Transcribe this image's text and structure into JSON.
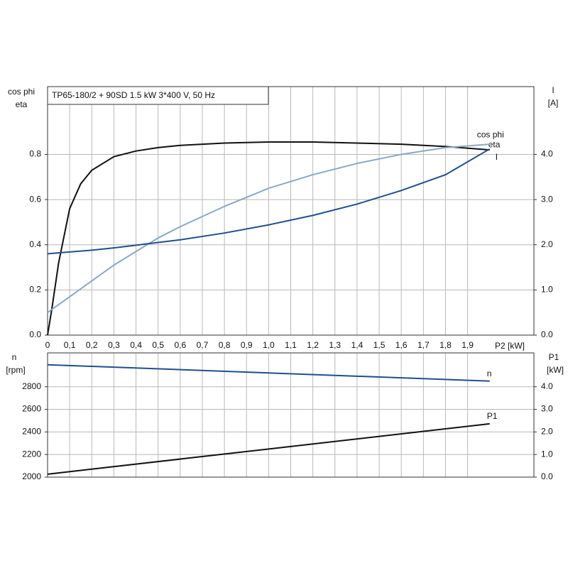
{
  "chart_data": [
    {
      "type": "line",
      "title": "TP65-180/2 + 90SD  1.5 kW  3*400 V, 50 Hz",
      "ylabel": [
        "cos phi",
        "eta"
      ],
      "y2label": [
        "I",
        "[A]"
      ],
      "xlabel": "P2 [kW]",
      "x": [
        0,
        0.02,
        0.05,
        0.1,
        0.15,
        0.2,
        0.3,
        0.4,
        0.5,
        0.6,
        0.8,
        1.0,
        1.2,
        1.4,
        1.6,
        1.8,
        2.0
      ],
      "xlim": [
        0,
        2.2
      ],
      "xticks": [
        0,
        {
          "value": 0.1,
          "label": "0,1"
        },
        {
          "value": 0.2,
          "label": "0,2"
        },
        {
          "value": 0.3,
          "label": "0,3"
        },
        {
          "value": 0.4,
          "label": "0,4"
        },
        {
          "value": 0.5,
          "label": "0,5"
        },
        {
          "value": 0.6,
          "label": "0,6"
        },
        {
          "value": 0.7,
          "label": "0,7"
        },
        {
          "value": 0.8,
          "label": "0,8"
        },
        {
          "value": 0.9,
          "label": "0,9"
        },
        {
          "value": 1.0,
          "label": "1,0"
        },
        {
          "value": 1.1,
          "label": "1,1"
        },
        {
          "value": 1.2,
          "label": "1,2"
        },
        {
          "value": 1.3,
          "label": "1,3"
        },
        {
          "value": 1.4,
          "label": "1,4"
        },
        {
          "value": 1.5,
          "label": "1,5"
        },
        {
          "value": 1.6,
          "label": "1,6"
        },
        {
          "value": 1.7,
          "label": "1,7"
        },
        {
          "value": 1.8,
          "label": "1,8"
        },
        {
          "value": 1.9,
          "label": "1,9"
        }
      ],
      "ylim": [
        0,
        1.1
      ],
      "yticks": [
        {
          "value": 0,
          "label": "0.0"
        },
        0.2,
        0.4,
        0.6,
        0.8
      ],
      "y2lim": [
        0,
        5.5
      ],
      "y2ticks": [
        {
          "value": 0,
          "label": "0.0"
        },
        {
          "value": 1,
          "label": "1.0"
        },
        {
          "value": 2,
          "label": "2.0"
        },
        {
          "value": 3,
          "label": "3.0"
        },
        {
          "value": 4,
          "label": "4.0"
        }
      ],
      "grid": true,
      "series": [
        {
          "name": "eta",
          "color": "#111111",
          "values": [
            0,
            0.12,
            0.32,
            0.56,
            0.67,
            0.73,
            0.79,
            0.815,
            0.83,
            0.84,
            0.85,
            0.855,
            0.855,
            0.85,
            0.845,
            0.835,
            0.82
          ]
        },
        {
          "name": "cos phi",
          "color": "#86a9c9",
          "values": [
            0.1,
            0.114,
            0.135,
            0.17,
            0.205,
            0.24,
            0.31,
            0.37,
            0.43,
            0.48,
            0.57,
            0.65,
            0.71,
            0.76,
            0.8,
            0.83,
            0.845
          ]
        },
        {
          "name": "I",
          "color": "#1f4f8f",
          "axis": "y2",
          "values": [
            1.8,
            1.81,
            1.82,
            1.84,
            1.86,
            1.88,
            1.93,
            1.99,
            2.05,
            2.11,
            2.26,
            2.44,
            2.65,
            2.9,
            3.2,
            3.55,
            4.12
          ]
        }
      ]
    },
    {
      "type": "line",
      "ylabel": [
        "n",
        "[rpm]"
      ],
      "y2label": [
        "P1",
        "[kW]"
      ],
      "x": [
        0,
        2.0
      ],
      "xlim": [
        0,
        2.2
      ],
      "ylim": [
        2000,
        3100
      ],
      "yticks": [
        2000,
        2200,
        2400,
        2600,
        2800
      ],
      "y2lim": [
        0,
        5.5
      ],
      "y2ticks": [
        {
          "value": 0,
          "label": "0.0"
        },
        {
          "value": 1,
          "label": "1.0"
        },
        {
          "value": 2,
          "label": "2.0"
        },
        {
          "value": 3,
          "label": "3.0"
        },
        {
          "value": 4,
          "label": "4.0"
        }
      ],
      "grid": true,
      "series": [
        {
          "name": "n",
          "color": "#1f4f8f",
          "values": [
            2995,
            2850
          ]
        },
        {
          "name": "P1",
          "color": "#111111",
          "axis": "y2",
          "values": [
            0.13,
            2.36
          ]
        }
      ]
    }
  ]
}
